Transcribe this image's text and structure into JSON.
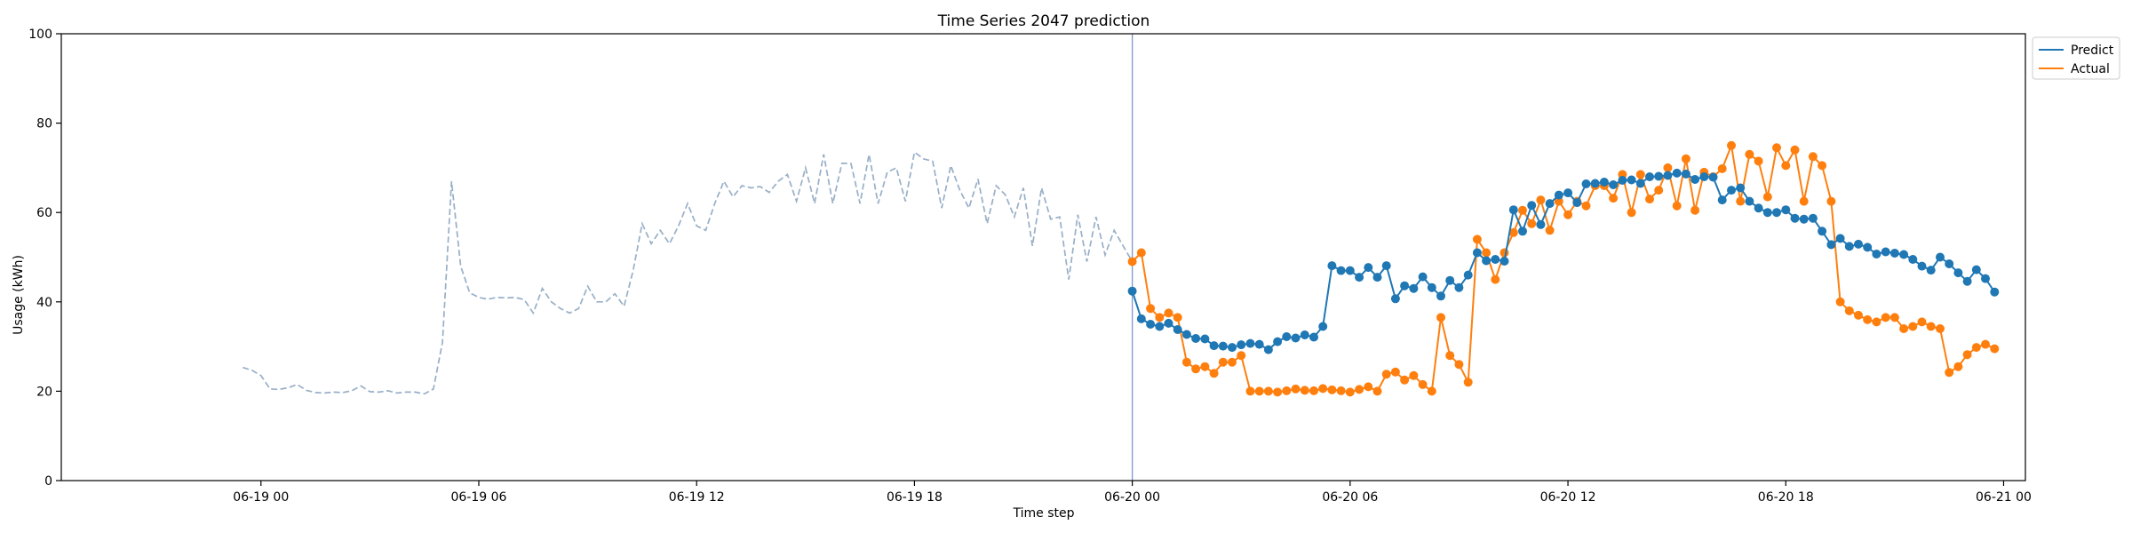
{
  "chart_data": {
    "type": "line",
    "title": "Time Series 2047 prediction",
    "xlabel": "Time step",
    "ylabel": "Usage (kWh)",
    "ylim": [
      0,
      100
    ],
    "xlim_hours": [
      -5.5,
      48.6
    ],
    "x_unit": "hours from 06-19 00:00",
    "yticks": [
      0,
      20,
      40,
      60,
      80,
      100
    ],
    "xticks": [
      {
        "x": 0,
        "label": "06-19 00"
      },
      {
        "x": 6,
        "label": "06-19 06"
      },
      {
        "x": 12,
        "label": "06-19 12"
      },
      {
        "x": 18,
        "label": "06-19 18"
      },
      {
        "x": 24,
        "label": "06-20 00"
      },
      {
        "x": 30,
        "label": "06-20 06"
      },
      {
        "x": 36,
        "label": "06-20 12"
      },
      {
        "x": 42,
        "label": "06-20 18"
      },
      {
        "x": 48,
        "label": "06-21 00"
      }
    ],
    "legend_position": "upper right, outside plot",
    "forecast_start_x": 24.0,
    "history": {
      "color": "#98afc7",
      "x_start": -0.5,
      "x_step": 0.25,
      "values": [
        25.3,
        24.7,
        23.5,
        20.5,
        20.4,
        20.8,
        21.5,
        20.2,
        19.7,
        19.6,
        19.8,
        19.7,
        20.1,
        21.2,
        19.9,
        19.8,
        20.1,
        19.6,
        19.8,
        19.8,
        19.4,
        20.5,
        31,
        67,
        48,
        42,
        41,
        40.6,
        41,
        40.9,
        41,
        40.5,
        37.5,
        43,
        40,
        38.5,
        37.5,
        38.5,
        43.5,
        40,
        40,
        41.8,
        39,
        47,
        57.5,
        53,
        56,
        53,
        57,
        62,
        57,
        56,
        62,
        67,
        63.5,
        66,
        65.5,
        65.8,
        64.5,
        67,
        68.5,
        62.5,
        70,
        62,
        73,
        62,
        71,
        71,
        62,
        73,
        62,
        69,
        70,
        62.5,
        73.5,
        72,
        71.5,
        61,
        70.5,
        65,
        61,
        67.5,
        57.5,
        66,
        64,
        59,
        65.5,
        52.5,
        65.5,
        58.5,
        59,
        45,
        59.5,
        49,
        59,
        50.5,
        56,
        52.5,
        49
      ]
    },
    "series": [
      {
        "name": "Predict",
        "color": "#1f77b4",
        "x_start": 24.0,
        "x_step": 0.25,
        "values": [
          42.4,
          36.2,
          35,
          34.5,
          35.2,
          33.8,
          32.7,
          31.8,
          31.7,
          30.2,
          30.1,
          29.8,
          30.4,
          30.7,
          30.5,
          29.3,
          31.1,
          32.2,
          31.9,
          32.6,
          32.1,
          34.5,
          48.1,
          47,
          47,
          45.5,
          47.7,
          45.5,
          48.1,
          40.7,
          43.6,
          43,
          45.6,
          43.2,
          41.3,
          44.8,
          43.2,
          46,
          51,
          49.2,
          49.5,
          49.1,
          60.6,
          55.8,
          61.6,
          57.3,
          62,
          63.9,
          64.4,
          62.2,
          66.4,
          66.5,
          66.8,
          66.2,
          67.2,
          67.3,
          66.5,
          68,
          68.1,
          68.3,
          68.8,
          68.6,
          67.4,
          68,
          67.9,
          62.8,
          65,
          65.5,
          62.5,
          61,
          60,
          60,
          60.6,
          58.7,
          58.5,
          58.7,
          55.8,
          52.8,
          54.2,
          52.4,
          52.9,
          52.2,
          50.7,
          51.2,
          50.9,
          50.6,
          49.5,
          48,
          47.1,
          50,
          48.5,
          46.5,
          44.6,
          47.2,
          45.2,
          42.2
        ]
      },
      {
        "name": "Actual",
        "color": "#ff7f0e",
        "x_start": 24.0,
        "x_step": 0.25,
        "values": [
          49,
          51,
          38.5,
          36.5,
          37.5,
          36.5,
          26.5,
          25,
          25.5,
          24,
          26.5,
          26.5,
          28,
          20,
          20,
          20,
          19.8,
          20.1,
          20.5,
          20.2,
          20.1,
          20.6,
          20.3,
          20.1,
          19.8,
          20.4,
          21,
          20,
          23.8,
          24.3,
          22.5,
          23.5,
          21.5,
          20,
          36.5,
          28,
          26,
          22,
          54,
          51,
          45,
          51,
          55.5,
          60.5,
          57.5,
          62.8,
          56,
          62.5,
          59.5,
          62.5,
          61.5,
          66,
          66,
          63.2,
          68.5,
          60,
          68.5,
          63,
          65,
          70,
          61.5,
          72,
          60.5,
          69,
          68,
          69.8,
          75,
          62.5,
          73,
          71.5,
          63.5,
          74.5,
          70.5,
          74,
          62.5,
          72.5,
          70.5,
          62.5,
          40,
          38,
          37,
          36,
          35.5,
          36.5,
          36.5,
          34,
          34.5,
          35.5,
          34.5,
          34,
          24.2,
          25.5,
          28.2,
          29.8,
          30.5,
          29.5
        ]
      }
    ]
  }
}
